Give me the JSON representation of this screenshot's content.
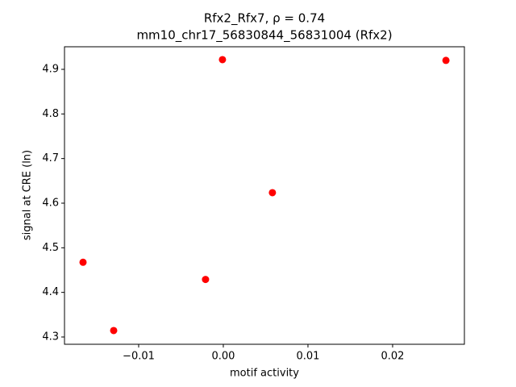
{
  "chart_data": {
    "type": "scatter",
    "title": "Rfx2_Rfx7, ρ = 0.74",
    "subtitle": "mm10_chr17_56830844_56831004 (Rfx2)",
    "x_label": "motif activity",
    "y_label": "signal at CRE (ln)",
    "x": [
      -0.01657,
      -0.01295,
      -0.0021,
      -0.0001,
      0.0058,
      0.0263
    ],
    "values": [
      4.4675,
      4.3145,
      4.429,
      4.9217,
      4.6235,
      4.92
    ],
    "color": "#ff0000",
    "xlim": [
      -0.01876,
      0.02848
    ],
    "ylim": [
      4.2837,
      4.9506
    ],
    "xticks": [
      {
        "value": -0.01,
        "label": "−0.01"
      },
      {
        "value": 0,
        "label": "0.00"
      },
      {
        "value": 0.01,
        "label": "0.01"
      },
      {
        "value": 0.02,
        "label": "0.02"
      }
    ],
    "yticks": [
      4.3,
      4.4,
      4.5,
      4.6,
      4.7,
      4.8,
      4.9
    ],
    "grid": false
  }
}
